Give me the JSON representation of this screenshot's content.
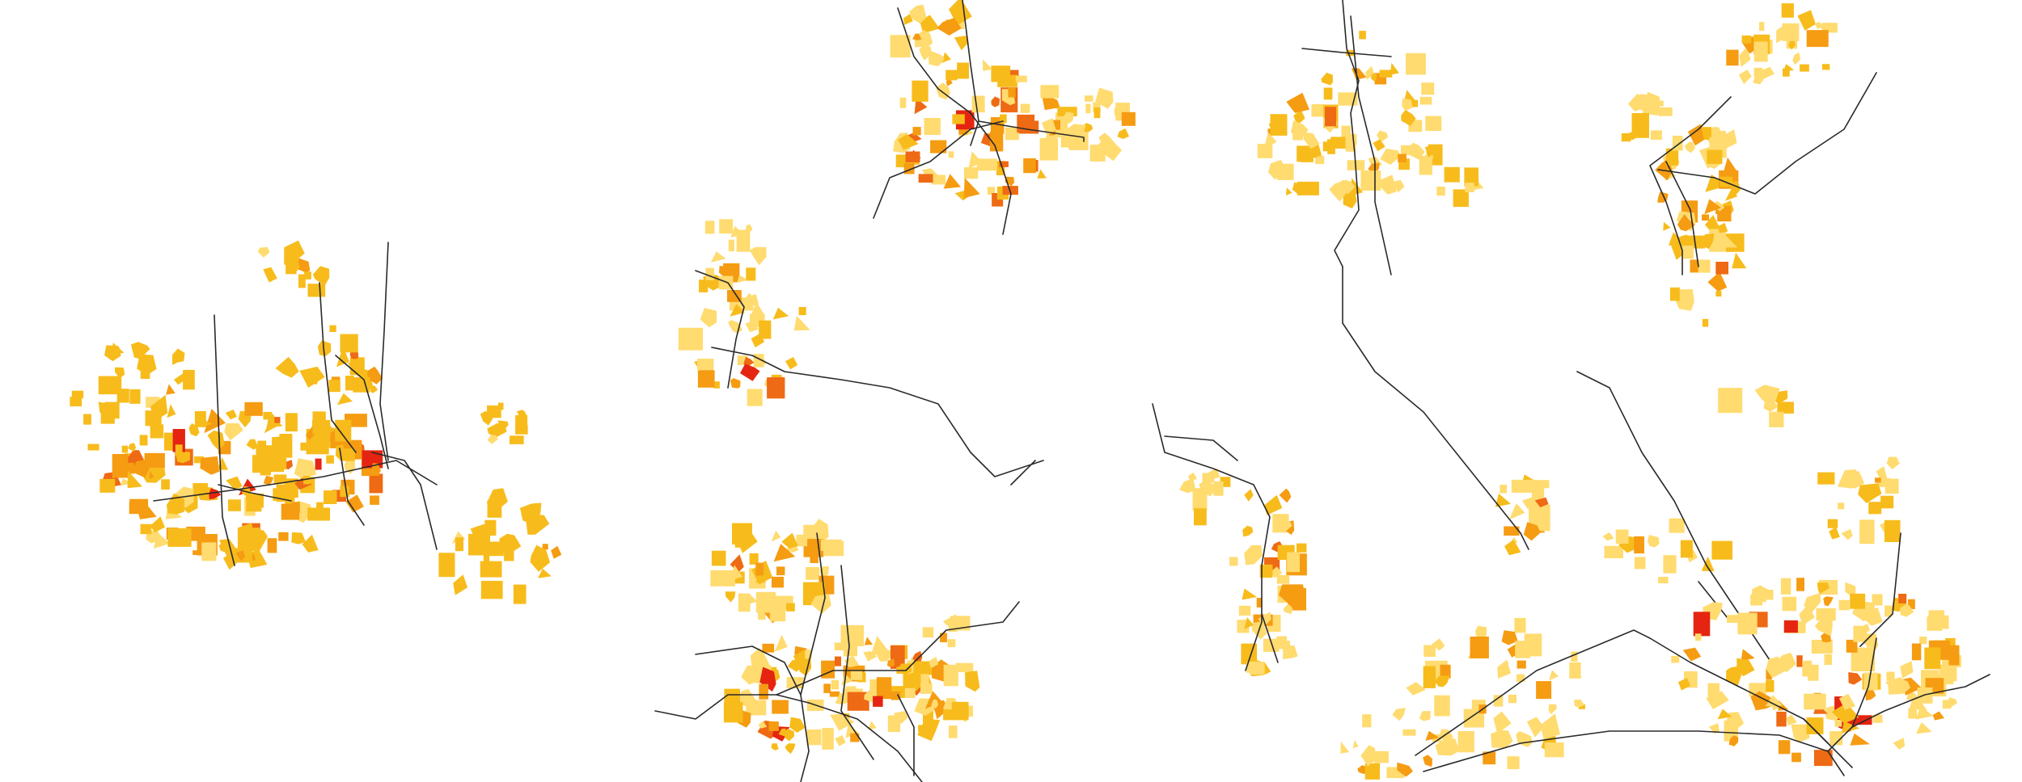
{
  "map": {
    "background": "#ffffff",
    "legend_colors": {
      "light": "#FFDB70",
      "mid": "#F7BC1C",
      "orange": "#F59C12",
      "dark_orange": "#EE6A14",
      "red": "#E52511"
    },
    "transit_color": "#2a2a2a",
    "panels": [
      {
        "id": "panel-1",
        "transit_lines": 8
      },
      {
        "id": "panel-2",
        "transit_lines": 7
      },
      {
        "id": "panel-3",
        "transit_lines": 6
      },
      {
        "id": "panel-4",
        "transit_lines": 3
      },
      {
        "id": "panel-5",
        "transit_lines": 4
      },
      {
        "id": "panel-6",
        "transit_lines": 3
      },
      {
        "id": "panel-7",
        "transit_lines": 2
      },
      {
        "id": "panel-8",
        "transit_lines": 6
      }
    ]
  }
}
